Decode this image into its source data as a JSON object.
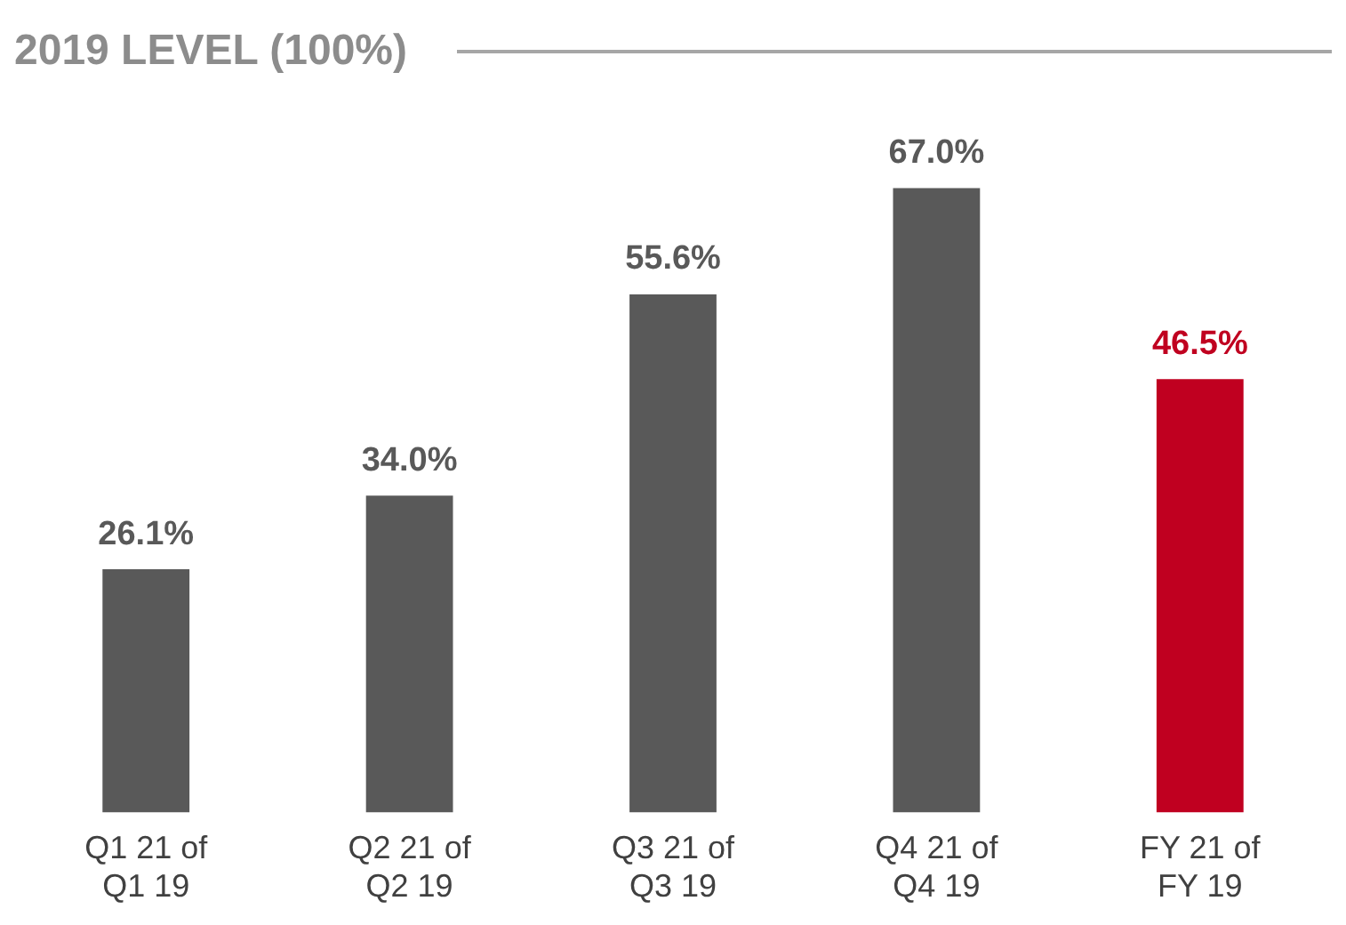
{
  "chart_data": {
    "type": "bar",
    "title": "2019 LEVEL (100%)",
    "categories": [
      "Q1 21 of Q1 19",
      "Q2 21 of Q2 19",
      "Q3 21 of Q3 19",
      "Q4 21 of Q4 19",
      "FY 21 of FY 19"
    ],
    "values": [
      26.1,
      34.0,
      55.6,
      67.0,
      46.5
    ],
    "value_labels": [
      "26.1%",
      "34.0%",
      "55.6%",
      "67.0%",
      "46.5%"
    ],
    "colors": [
      "#595959",
      "#595959",
      "#595959",
      "#595959",
      "#c00020"
    ],
    "grid": false,
    "legend": false
  }
}
